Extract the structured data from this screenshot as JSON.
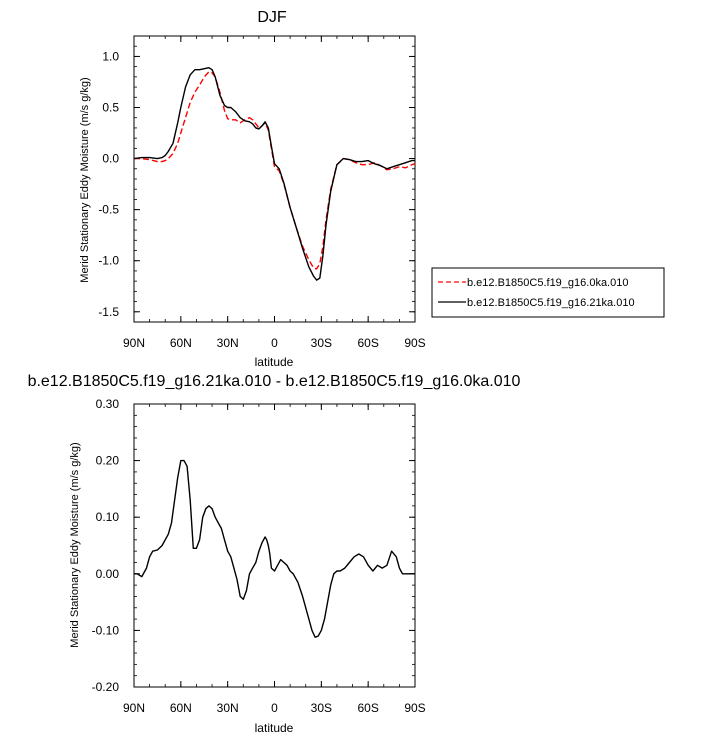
{
  "chart_data": [
    {
      "type": "line",
      "title": "DJF",
      "xlabel": "latitude",
      "ylabel": "Merid Stationary Eddy Moisture (m/s g/kg)",
      "xlim": [
        90,
        -90
      ],
      "ylim": [
        -1.6,
        1.2
      ],
      "x_ticks": [
        "90N",
        "60N",
        "30N",
        "0",
        "30S",
        "60S",
        "90S"
      ],
      "x_tick_values": [
        90,
        60,
        30,
        0,
        -30,
        -60,
        -90
      ],
      "y_ticks": [
        "1.0",
        "0.5",
        "0.0",
        "-0.5",
        "-1.0",
        "-1.5"
      ],
      "y_tick_values": [
        1.0,
        0.5,
        0.0,
        -0.5,
        -1.0,
        -1.5
      ],
      "legend_position": "right",
      "series": [
        {
          "name": "b.e12.B1850C5.f19_g16.0ka.010",
          "color": "#ff0000",
          "dash": "dashed",
          "x": [
            90,
            85,
            80,
            75,
            72,
            70,
            68,
            65,
            62,
            60,
            57,
            54,
            51,
            48,
            45,
            42,
            40,
            38,
            35,
            32,
            30,
            28,
            25,
            22,
            19,
            16,
            14,
            12,
            10,
            8,
            6,
            4,
            2,
            0,
            -3,
            -6,
            -10,
            -14,
            -18,
            -22,
            -25,
            -27,
            -29,
            -31,
            -33,
            -36,
            -40,
            -44,
            -48,
            -52,
            -56,
            -60,
            -64,
            -68,
            -72,
            -76,
            -80,
            -84,
            -88,
            -90
          ],
          "y": [
            0.0,
            0.0,
            -0.01,
            -0.03,
            -0.03,
            -0.02,
            0.0,
            0.05,
            0.15,
            0.25,
            0.4,
            0.55,
            0.65,
            0.72,
            0.8,
            0.85,
            0.84,
            0.8,
            0.65,
            0.47,
            0.39,
            0.38,
            0.38,
            0.35,
            0.38,
            0.4,
            0.38,
            0.34,
            0.3,
            0.32,
            0.35,
            0.28,
            0.1,
            -0.08,
            -0.12,
            -0.25,
            -0.48,
            -0.68,
            -0.86,
            -0.99,
            -1.07,
            -1.08,
            -1.03,
            -0.86,
            -0.6,
            -0.3,
            -0.06,
            0.0,
            -0.01,
            -0.04,
            -0.06,
            -0.06,
            -0.04,
            -0.07,
            -0.11,
            -0.1,
            -0.08,
            -0.09,
            -0.06,
            -0.05
          ]
        },
        {
          "name": "b.e12.B1850C5.f19_g16.21ka.010",
          "color": "#000000",
          "dash": "solid",
          "x": [
            90,
            85,
            80,
            75,
            72,
            70,
            68,
            65,
            62,
            60,
            57,
            54,
            51,
            48,
            45,
            42,
            40,
            38,
            35,
            32,
            30,
            28,
            25,
            22,
            19,
            16,
            14,
            12,
            10,
            8,
            6,
            4,
            2,
            0,
            -3,
            -6,
            -10,
            -14,
            -18,
            -22,
            -25,
            -27,
            -29,
            -31,
            -33,
            -36,
            -40,
            -44,
            -48,
            -52,
            -56,
            -60,
            -64,
            -68,
            -72,
            -76,
            -80,
            -84,
            -88,
            -90
          ],
          "y": [
            0.0,
            0.01,
            0.01,
            0.0,
            0.01,
            0.03,
            0.07,
            0.15,
            0.35,
            0.5,
            0.7,
            0.82,
            0.87,
            0.87,
            0.88,
            0.89,
            0.87,
            0.8,
            0.62,
            0.52,
            0.5,
            0.5,
            0.46,
            0.4,
            0.37,
            0.36,
            0.34,
            0.3,
            0.29,
            0.32,
            0.36,
            0.3,
            0.12,
            -0.05,
            -0.1,
            -0.24,
            -0.48,
            -0.68,
            -0.88,
            -1.06,
            -1.15,
            -1.19,
            -1.17,
            -0.95,
            -0.65,
            -0.32,
            -0.06,
            0.0,
            -0.01,
            -0.03,
            -0.03,
            -0.02,
            -0.05,
            -0.07,
            -0.1,
            -0.08,
            -0.06,
            -0.04,
            -0.02,
            -0.02
          ]
        }
      ]
    },
    {
      "type": "line",
      "title": "b.e12.B1850C5.f19_g16.21ka.010 - b.e12.B1850C5.f19_g16.0ka.010",
      "xlabel": "latitude",
      "ylabel": "Merid Stationary Eddy Moisture (m/s g/kg)",
      "xlim": [
        90,
        -90
      ],
      "ylim": [
        -0.2,
        0.3
      ],
      "x_ticks": [
        "90N",
        "60N",
        "30N",
        "0",
        "30S",
        "60S",
        "90S"
      ],
      "x_tick_values": [
        90,
        60,
        30,
        0,
        -30,
        -60,
        -90
      ],
      "y_ticks": [
        "0.30",
        "0.20",
        "0.10",
        "0.00",
        "-0.10",
        "-0.20"
      ],
      "y_tick_values": [
        0.3,
        0.2,
        0.1,
        0.0,
        -0.1,
        -0.2
      ],
      "series": [
        {
          "color": "#000000",
          "dash": "solid",
          "x": [
            90,
            88,
            85,
            82,
            80,
            78,
            75,
            72,
            70,
            68,
            66,
            64,
            62,
            60,
            58,
            56,
            54,
            52,
            50,
            48,
            46,
            44,
            42,
            40,
            38,
            36,
            34,
            32,
            30,
            28,
            26,
            24,
            22,
            20,
            18,
            16,
            14,
            12,
            10,
            8,
            6,
            5,
            4,
            3,
            2,
            0,
            -2,
            -4,
            -6,
            -8,
            -10,
            -12,
            -15,
            -18,
            -21,
            -24,
            -26,
            -28,
            -30,
            -32,
            -34,
            -36,
            -38,
            -40,
            -42,
            -45,
            -48,
            -51,
            -54,
            -57,
            -60,
            -63,
            -66,
            -69,
            -72,
            -75,
            -78,
            -80,
            -81,
            -82,
            -84,
            -86,
            -88,
            -90
          ],
          "y": [
            0.0,
            0.0,
            -0.005,
            0.01,
            0.03,
            0.04,
            0.042,
            0.05,
            0.06,
            0.07,
            0.09,
            0.13,
            0.17,
            0.2,
            0.2,
            0.19,
            0.13,
            0.045,
            0.045,
            0.06,
            0.1,
            0.115,
            0.12,
            0.115,
            0.1,
            0.09,
            0.08,
            0.06,
            0.04,
            0.03,
            0.01,
            -0.01,
            -0.04,
            -0.045,
            -0.03,
            0.0,
            0.01,
            0.02,
            0.04,
            0.055,
            0.065,
            0.06,
            0.05,
            0.035,
            0.01,
            0.005,
            0.015,
            0.025,
            0.02,
            0.015,
            0.005,
            0.0,
            -0.015,
            -0.04,
            -0.07,
            -0.1,
            -0.112,
            -0.11,
            -0.1,
            -0.08,
            -0.05,
            -0.02,
            0.0,
            0.005,
            0.005,
            0.01,
            0.02,
            0.03,
            0.035,
            0.03,
            0.015,
            0.005,
            0.015,
            0.01,
            0.015,
            0.04,
            0.03,
            0.01,
            0.005,
            0.0,
            0.0,
            0.0,
            0.0,
            0.0
          ]
        }
      ]
    }
  ]
}
